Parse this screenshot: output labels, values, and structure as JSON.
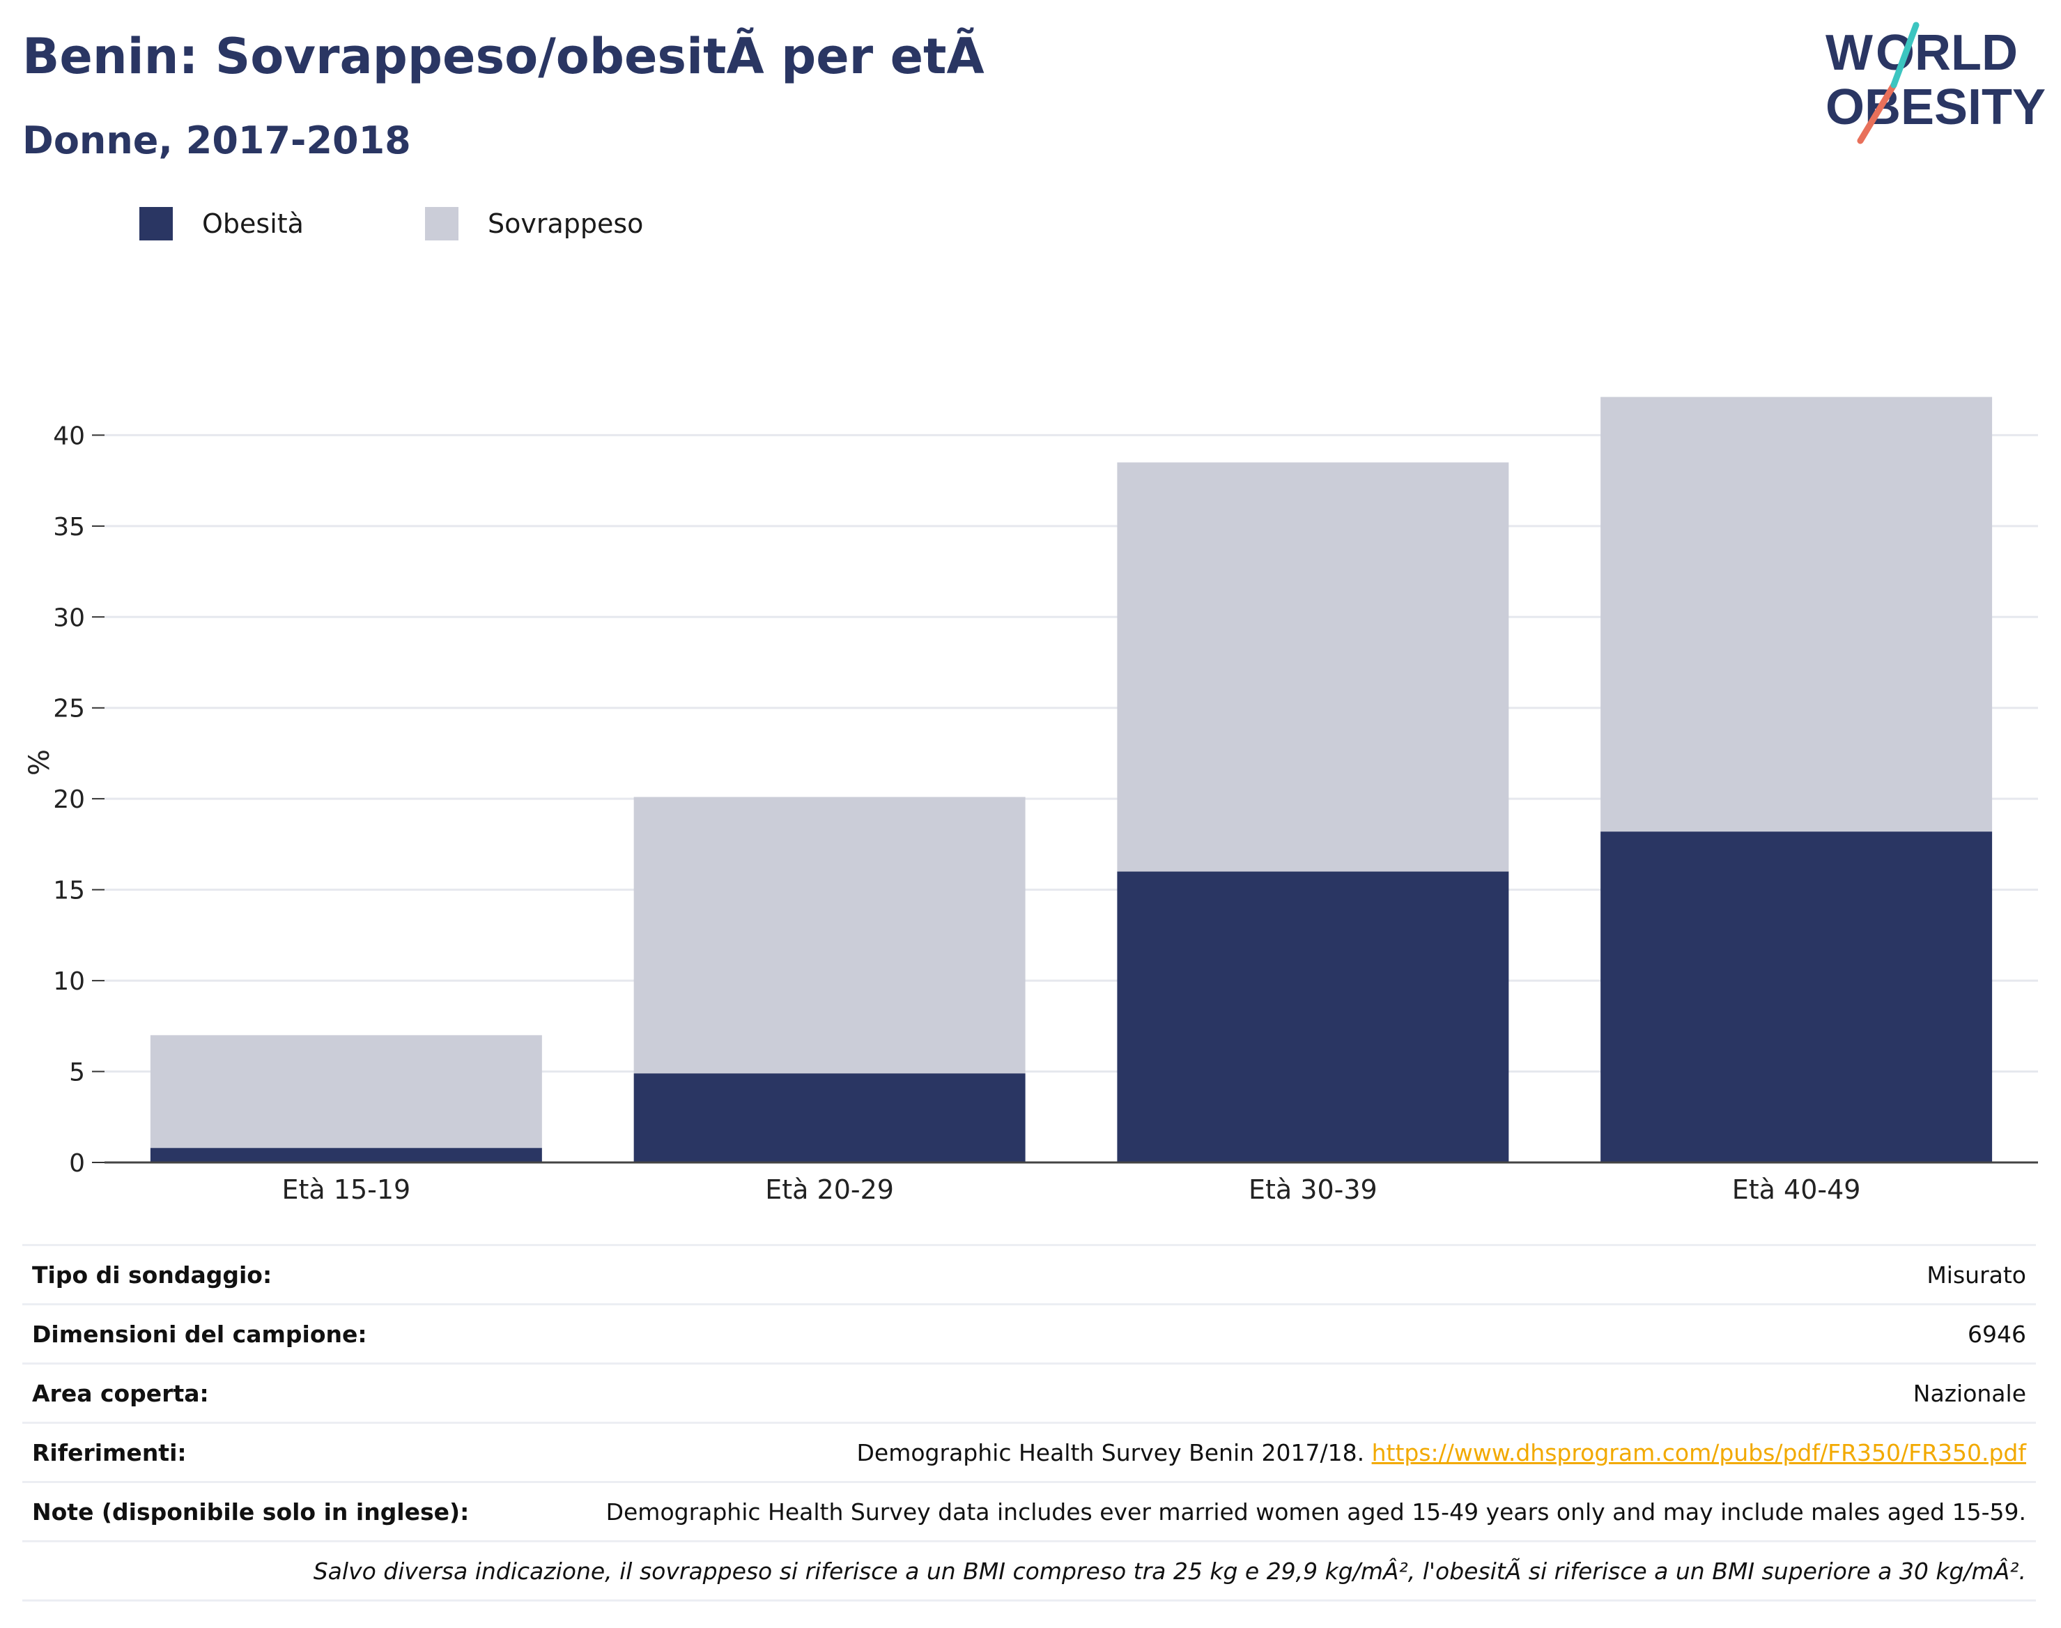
{
  "title": "Benin: Sovrappeso/obesitÃ  per etÃ ",
  "subtitle": "Donne, 2017-2018",
  "logo": {
    "line1": "WORLD",
    "line2": "OBESITY",
    "colors": [
      "#2a3663",
      "#3cc5c0",
      "#e8705a"
    ]
  },
  "legend": [
    {
      "label": "Obesità",
      "color": "#2a3663"
    },
    {
      "label": "Sovrappeso",
      "color": "#cbcdd8"
    }
  ],
  "chart_data": {
    "type": "bar",
    "stacked": true,
    "categories": [
      "Età 15-19",
      "Età 20-29",
      "Età 30-39",
      "Età 40-49"
    ],
    "series": [
      {
        "name": "Obesità",
        "color": "#2a3663",
        "values": [
          0.8,
          4.9,
          16.0,
          18.2
        ]
      },
      {
        "name": "Sovrappeso",
        "color": "#cbcdd8",
        "values": [
          6.2,
          15.2,
          22.5,
          23.9
        ]
      }
    ],
    "ylabel": "%",
    "ylim": [
      0,
      44
    ],
    "yticks": [
      0,
      5,
      10,
      15,
      20,
      25,
      30,
      35,
      40
    ],
    "grid": true,
    "legend_position": "top-left"
  },
  "info": [
    {
      "key": "Tipo di sondaggio:",
      "value": "Misurato"
    },
    {
      "key": "Dimensioni del campione:",
      "value": "6946"
    },
    {
      "key": "Area coperta:",
      "value": "Nazionale"
    },
    {
      "key": "Riferimenti:",
      "value": "Demographic Health Survey Benin 2017/18.",
      "link": "https://www.dhsprogram.com/pubs/pdf/FR350/FR350.pdf"
    },
    {
      "key": "Note (disponibile solo in inglese):",
      "value": "Demographic Health Survey data includes ever married women aged 15-49 years only and may include males aged 15-59."
    }
  ],
  "footnote": "Salvo diversa indicazione, il sovrappeso si riferisce a un BMI compreso tra 25 kg e 29,9 kg/mÂ², l'obesitÃ  si riferisce a un BMI superiore a 30 kg/mÂ²."
}
